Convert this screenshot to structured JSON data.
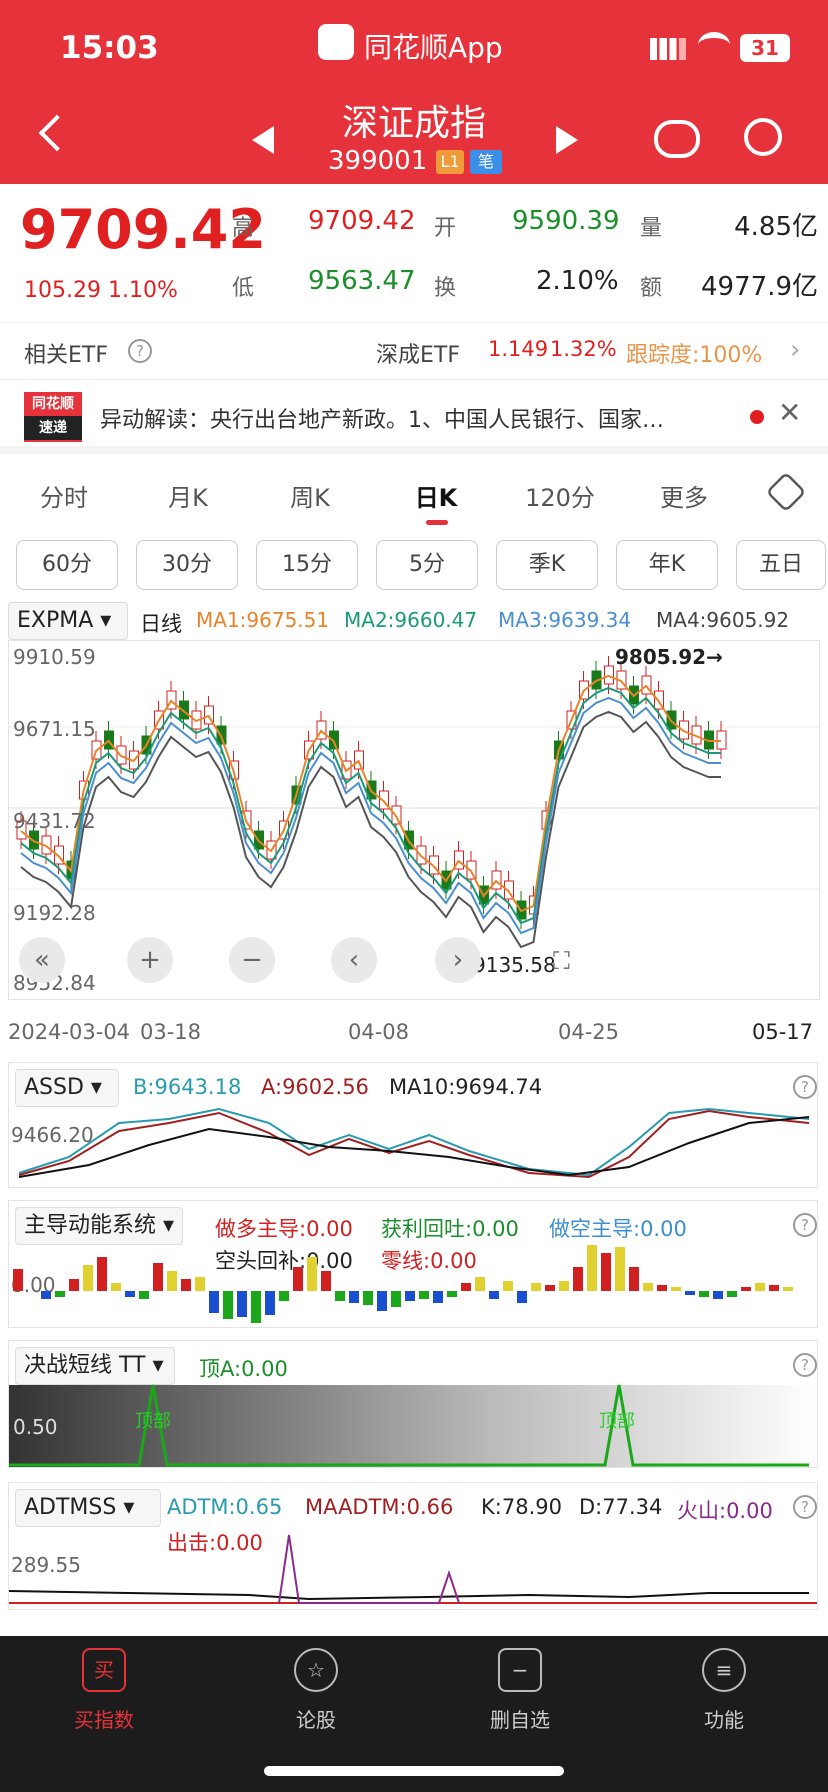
{
  "status": {
    "time": "15:03",
    "app": "同花顺App",
    "battery": "31"
  },
  "header": {
    "title": "深证成指",
    "code": "399001",
    "tag1": "L1",
    "tag2": "笔"
  },
  "quote": {
    "price": "9709.42",
    "change": "105.29",
    "pct": "1.10%",
    "high_lbl": "高",
    "high": "9709.42",
    "open_lbl": "开",
    "open": "9590.39",
    "vol_lbl": "量",
    "vol": "4.85亿",
    "low_lbl": "低",
    "low": "9563.47",
    "turn_lbl": "换",
    "turn": "2.10%",
    "amt_lbl": "额",
    "amt": "4977.9亿"
  },
  "etf": {
    "label": "相关ETF",
    "name": "深成ETF",
    "price": "1.149",
    "pct": "1.32%",
    "track": "跟踪度:100%"
  },
  "news": {
    "logo1": "同花顺",
    "logo2": "速递",
    "text": "异动解读：央行出台地产新政。1、中国人民银行、国家…"
  },
  "tabs": [
    "分时",
    "月K",
    "周K",
    "日K",
    "120分",
    "更多"
  ],
  "periods": [
    "60分",
    "30分",
    "15分",
    "5分",
    "季K",
    "年K",
    "五日"
  ],
  "kline": {
    "indicator": "EXPMA",
    "period": "日线",
    "ma1": "MA1:9675.51",
    "ma2": "MA2:9660.47",
    "ma3": "MA3:9639.34",
    "ma4": "MA4:9605.92",
    "y1": "9910.59",
    "y2": "9671.15",
    "y3": "9431.72",
    "y4": "9192.28",
    "y5": "8952.84",
    "hi_label": "9805.92→",
    "lo_label": "9135.58",
    "x1": "2024-03-04",
    "x2": "03-18",
    "x3": "04-08",
    "x4": "04-25",
    "x5": "05-17"
  },
  "assd": {
    "name": "ASSD",
    "b": "B:9643.18",
    "a": "A:9602.56",
    "ma10": "MA10:9694.74",
    "y": "9466.20"
  },
  "zd": {
    "name": "主导动能系统",
    "v1": "做多主导:0.00",
    "v2": "获利回吐:0.00",
    "v3": "做空主导:0.00",
    "v4": "空头回补:0.00",
    "v5": "零线:0.00",
    "y": "0.00"
  },
  "tt": {
    "name": "决战短线 TT",
    "v1": "顶A:0.00",
    "y": "0.50",
    "peak": "顶部"
  },
  "adtm": {
    "name": "ADTMSS",
    "v1": "ADTM:0.65",
    "v2": "MAADTM:0.66",
    "v3": "K:78.90",
    "v4": "D:77.34",
    "v5": "火山:0.00",
    "v6": "出击:0.00",
    "y": "289.55"
  },
  "footer": [
    "买指数",
    "论股",
    "删自选",
    "功能"
  ],
  "chart_data": {
    "type": "candlestick",
    "title": "深证成指",
    "x_ticks": [
      "2024-03-04",
      "03-18",
      "04-08",
      "04-25",
      "05-17"
    ],
    "ylim": [
      8952.84,
      9910.59
    ],
    "y_ticks": [
      9910.59,
      9671.15,
      9431.72,
      9192.28,
      8952.84
    ],
    "high_mark": 9805.92,
    "low_mark": 9135.58
  }
}
